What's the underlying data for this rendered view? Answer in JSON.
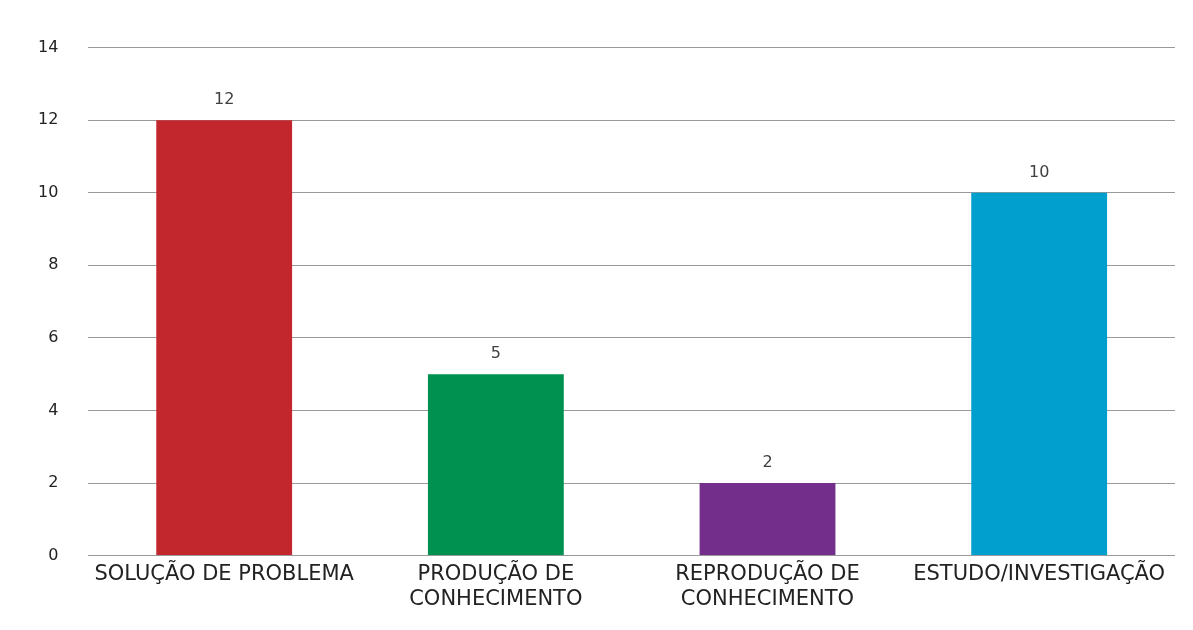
{
  "chart_data": {
    "type": "bar",
    "categories": [
      "SOLUÇÃO DE PROBLEMA",
      "PRODUÇÃO DE CONHECIMENTO",
      "REPRODUÇÃO DE CONHECIMENTO",
      "ESTUDO/INVESTIGAÇÃO"
    ],
    "values": [
      12,
      5,
      2,
      10
    ],
    "colors": [
      "#c1272d",
      "#00904f",
      "#732e8c",
      "#009fce"
    ],
    "ylim": [
      0,
      14
    ],
    "yticks": [
      0,
      2,
      4,
      6,
      8,
      10,
      12,
      14
    ],
    "grid": "y",
    "data_labels": true,
    "legend": false
  }
}
